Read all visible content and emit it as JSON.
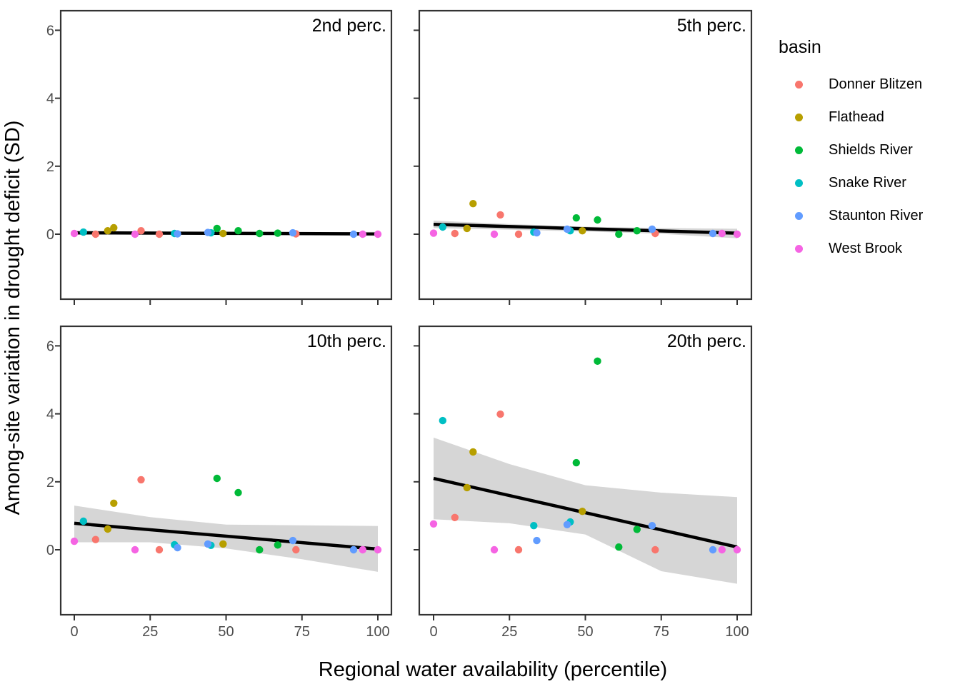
{
  "legend": {
    "title": "basin",
    "entries": [
      {
        "label": "Donner Blitzen",
        "color": "#F8766D"
      },
      {
        "label": "Flathead",
        "color": "#B79F00"
      },
      {
        "label": "Shields River",
        "color": "#00BA38"
      },
      {
        "label": "Snake River",
        "color": "#00BFC4"
      },
      {
        "label": "Staunton River",
        "color": "#619CFF"
      },
      {
        "label": "West Brook",
        "color": "#F564E3"
      }
    ]
  },
  "chart_data": {
    "type": "scatter",
    "xlabel": "Regional water availability (percentile)",
    "ylabel": "Among-site variation in drought deficit (SD)",
    "x_ticks": [
      0,
      25,
      50,
      75,
      100
    ],
    "y_ticks": [
      0,
      2,
      4,
      6
    ],
    "xlim": [
      -4.5,
      104.5
    ],
    "ylim": [
      -1.9,
      6.6
    ],
    "grid": "off",
    "legend_position": "right",
    "ribbon_color": "#D6D6D6",
    "trend_color": "#000000",
    "axis_text_color": "#4D4D4D",
    "panel_border_color": "#333333",
    "facets": [
      {
        "label": "2nd perc.",
        "trend": {
          "x": [
            0,
            100
          ],
          "y": [
            0.04,
            0.01
          ]
        },
        "ribbon": [
          [
            0,
            -0.02,
            0.1
          ],
          [
            25,
            0.0,
            0.08
          ],
          [
            50,
            -0.01,
            0.06
          ],
          [
            75,
            -0.03,
            0.05
          ],
          [
            100,
            -0.05,
            0.07
          ]
        ],
        "series": [
          {
            "name": "Donner Blitzen",
            "color": "#F8766D",
            "points": [
              [
                7,
                0.0
              ],
              [
                22,
                0.1
              ],
              [
                28,
                0.0
              ],
              [
                73,
                0.01
              ]
            ]
          },
          {
            "name": "Flathead",
            "color": "#B79F00",
            "points": [
              [
                11,
                0.1
              ],
              [
                13,
                0.19
              ],
              [
                49,
                0.02
              ]
            ]
          },
          {
            "name": "Shields River",
            "color": "#00BA38",
            "points": [
              [
                47,
                0.17
              ],
              [
                54,
                0.1
              ],
              [
                61,
                0.02
              ],
              [
                67,
                0.03
              ]
            ]
          },
          {
            "name": "Snake River",
            "color": "#00BFC4",
            "points": [
              [
                3,
                0.06
              ],
              [
                33,
                0.02
              ],
              [
                45,
                0.04
              ]
            ]
          },
          {
            "name": "Staunton River",
            "color": "#619CFF",
            "points": [
              [
                34,
                0.01
              ],
              [
                44,
                0.05
              ],
              [
                72,
                0.04
              ],
              [
                92,
                0.0
              ]
            ]
          },
          {
            "name": "West Brook",
            "color": "#F564E3",
            "points": [
              [
                0,
                0.02
              ],
              [
                20,
                0.0
              ],
              [
                95,
                0.0
              ],
              [
                100,
                0.0
              ]
            ]
          }
        ]
      },
      {
        "label": "5th perc.",
        "trend": {
          "x": [
            0,
            100
          ],
          "y": [
            0.29,
            0.03
          ]
        },
        "ribbon": [
          [
            0,
            0.18,
            0.4
          ],
          [
            25,
            0.13,
            0.3
          ],
          [
            50,
            0.08,
            0.22
          ],
          [
            75,
            0.01,
            0.18
          ],
          [
            100,
            -0.12,
            0.16
          ]
        ],
        "series": [
          {
            "name": "Donner Blitzen",
            "color": "#F8766D",
            "points": [
              [
                7,
                0.02
              ],
              [
                22,
                0.57
              ],
              [
                28,
                0.0
              ],
              [
                73,
                0.02
              ]
            ]
          },
          {
            "name": "Flathead",
            "color": "#B79F00",
            "points": [
              [
                11,
                0.17
              ],
              [
                13,
                0.9
              ],
              [
                49,
                0.1
              ]
            ]
          },
          {
            "name": "Shields River",
            "color": "#00BA38",
            "points": [
              [
                47,
                0.48
              ],
              [
                54,
                0.42
              ],
              [
                61,
                0.0
              ],
              [
                67,
                0.1
              ]
            ]
          },
          {
            "name": "Snake River",
            "color": "#00BFC4",
            "points": [
              [
                3,
                0.21
              ],
              [
                33,
                0.06
              ],
              [
                45,
                0.1
              ]
            ]
          },
          {
            "name": "Staunton River",
            "color": "#619CFF",
            "points": [
              [
                34,
                0.04
              ],
              [
                44,
                0.15
              ],
              [
                72,
                0.15
              ],
              [
                92,
                0.02
              ]
            ]
          },
          {
            "name": "West Brook",
            "color": "#F564E3",
            "points": [
              [
                0,
                0.03
              ],
              [
                20,
                0.0
              ],
              [
                95,
                0.02
              ],
              [
                100,
                0.0
              ]
            ]
          }
        ]
      },
      {
        "label": "10th perc.",
        "trend": {
          "x": [
            0,
            100
          ],
          "y": [
            0.78,
            0.02
          ]
        },
        "ribbon": [
          [
            0,
            0.22,
            1.3
          ],
          [
            25,
            0.22,
            0.96
          ],
          [
            50,
            0.04,
            0.74
          ],
          [
            75,
            -0.28,
            0.72
          ],
          [
            100,
            -0.65,
            0.7
          ]
        ],
        "series": [
          {
            "name": "Donner Blitzen",
            "color": "#F8766D",
            "points": [
              [
                7,
                0.3
              ],
              [
                22,
                2.06
              ],
              [
                28,
                0.0
              ],
              [
                73,
                0.0
              ]
            ]
          },
          {
            "name": "Flathead",
            "color": "#B79F00",
            "points": [
              [
                11,
                0.61
              ],
              [
                13,
                1.37
              ],
              [
                49,
                0.17
              ]
            ]
          },
          {
            "name": "Shields River",
            "color": "#00BA38",
            "points": [
              [
                47,
                2.1
              ],
              [
                54,
                1.68
              ],
              [
                61,
                0.0
              ],
              [
                67,
                0.14
              ]
            ]
          },
          {
            "name": "Snake River",
            "color": "#00BFC4",
            "points": [
              [
                3,
                0.84
              ],
              [
                33,
                0.15
              ],
              [
                45,
                0.13
              ]
            ]
          },
          {
            "name": "Staunton River",
            "color": "#619CFF",
            "points": [
              [
                34,
                0.06
              ],
              [
                44,
                0.17
              ],
              [
                72,
                0.27
              ],
              [
                92,
                0.0
              ]
            ]
          },
          {
            "name": "West Brook",
            "color": "#F564E3",
            "points": [
              [
                0,
                0.25
              ],
              [
                20,
                0.0
              ],
              [
                95,
                0.0
              ],
              [
                100,
                0.0
              ]
            ]
          }
        ]
      },
      {
        "label": "20th perc.",
        "trend": {
          "x": [
            0,
            100
          ],
          "y": [
            2.1,
            0.08
          ]
        },
        "ribbon": [
          [
            0,
            0.9,
            3.3
          ],
          [
            25,
            0.78,
            2.52
          ],
          [
            50,
            0.45,
            1.9
          ],
          [
            75,
            -0.63,
            1.68
          ],
          [
            100,
            -1.0,
            1.55
          ]
        ],
        "series": [
          {
            "name": "Donner Blitzen",
            "color": "#F8766D",
            "points": [
              [
                7,
                0.95
              ],
              [
                22,
                3.99
              ],
              [
                28,
                0.0
              ],
              [
                73,
                0.0
              ]
            ]
          },
          {
            "name": "Flathead",
            "color": "#B79F00",
            "points": [
              [
                11,
                1.83
              ],
              [
                13,
                2.88
              ],
              [
                49,
                1.13
              ]
            ]
          },
          {
            "name": "Shields River",
            "color": "#00BA38",
            "points": [
              [
                47,
                2.56
              ],
              [
                54,
                5.55
              ],
              [
                61,
                0.08
              ],
              [
                67,
                0.6
              ]
            ]
          },
          {
            "name": "Snake River",
            "color": "#00BFC4",
            "points": [
              [
                3,
                3.8
              ],
              [
                33,
                0.71
              ],
              [
                45,
                0.82
              ]
            ]
          },
          {
            "name": "Staunton River",
            "color": "#619CFF",
            "points": [
              [
                34,
                0.27
              ],
              [
                44,
                0.74
              ],
              [
                72,
                0.71
              ],
              [
                92,
                0.0
              ]
            ]
          },
          {
            "name": "West Brook",
            "color": "#F564E3",
            "points": [
              [
                0,
                0.76
              ],
              [
                20,
                0.0
              ],
              [
                95,
                0.0
              ],
              [
                100,
                0.0
              ]
            ]
          }
        ]
      }
    ]
  }
}
